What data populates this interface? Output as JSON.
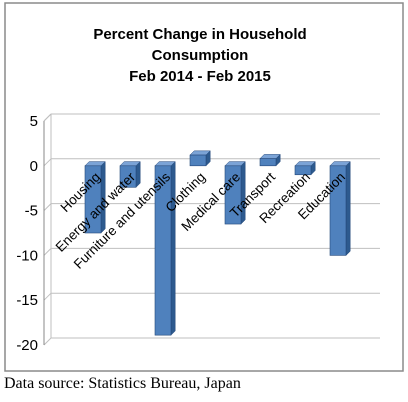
{
  "chart_data": {
    "type": "bar",
    "title_lines": [
      "Percent Change in Household",
      "Consumption",
      "Feb 2014 - Feb 2015"
    ],
    "categories": [
      "Housing",
      "Energy and water",
      "Furniture and utensils",
      "Clothing",
      "Medical care",
      "Transport",
      "Recreation",
      "Education"
    ],
    "values": [
      -7.5,
      -2.4,
      -18.9,
      1.2,
      -6.5,
      0.8,
      -1.0,
      -10.0
    ],
    "ylim": [
      -20,
      5
    ],
    "yticks": [
      "5",
      "0",
      "-5",
      "-10",
      "-15",
      "-20"
    ],
    "xlabel": "",
    "ylabel": "",
    "grid": true,
    "colors": {
      "bar_front": "#4f81bd",
      "bar_side": "#2d5a8e",
      "bar_top": "#7ba3d6",
      "grid": "#bfbfbf",
      "frame": "#8a8a8a"
    }
  },
  "source_note": "Data source:  Statistics Bureau, Japan"
}
